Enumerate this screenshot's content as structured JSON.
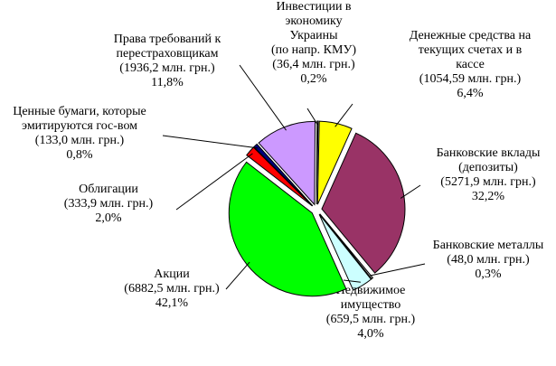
{
  "chart_data": {
    "type": "pie",
    "categories": [
      "Денежные средства на\nтекущих счетах и в\nкассе",
      "Банковские вклады\n(депозиты)",
      "Банковские металлы",
      "Недвижимое\nимущество",
      "Акции",
      "Облигации",
      "Ценные бумаги, которые\nэмитируются гос-вом",
      "Права требований к\nперестраховщикам",
      "Инвестиции в\nэкономику\nУкраины\n(по напр. КМУ)"
    ],
    "amounts": [
      "(1054,59 млн. грн.)",
      "(5271,9 млн. грн.)",
      "(48,0 млн. грн.)",
      "(659,5 млн. грн.)",
      "(6882,5 млн. грн.)",
      "(333,9 млн. грн.)",
      "(133,0 млн. грн.)",
      "(1936,2 млн. грн.)",
      "(36,4 млн. грн.)"
    ],
    "values": [
      6.4,
      32.2,
      0.3,
      4.0,
      42.1,
      2.0,
      0.8,
      11.8,
      0.2
    ],
    "value_labels": [
      "6,4%",
      "32,2%",
      "0,3%",
      "4,0%",
      "42,1%",
      "2,0%",
      "0,8%",
      "11,8%",
      "0,2%"
    ],
    "colors": [
      "#ffff00",
      "#993366",
      "#c0c0c0",
      "#ccffff",
      "#00ff00",
      "#ff0000",
      "#000080",
      "#cc99ff",
      "#ffffff"
    ]
  }
}
